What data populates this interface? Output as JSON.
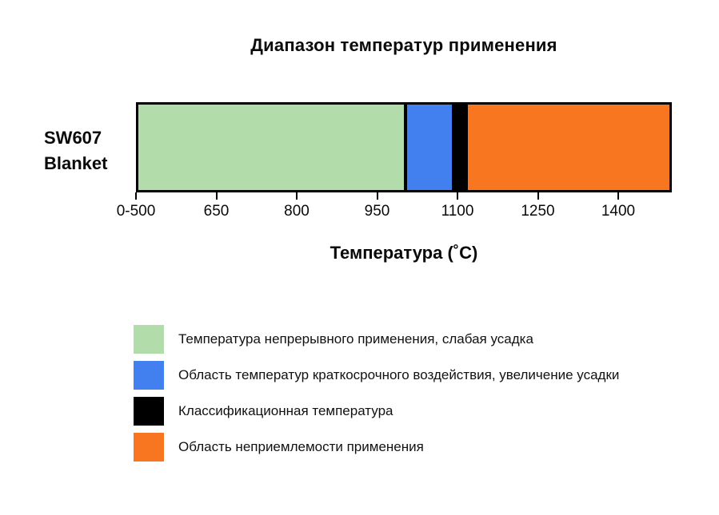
{
  "row_label_lines": [
    "SW607",
    "Blanket"
  ],
  "colors": {
    "continuous_use_green": "#b3dcab",
    "short_term_blue": "#4280f0",
    "classification_black": "#000000",
    "unacceptable_orange": "#f97621",
    "bar_border": "#000000"
  },
  "chart_data": {
    "type": "bar",
    "orientation": "horizontal-stacked",
    "title": "Диапазон температур применения",
    "categories": [
      "SW607 Blanket"
    ],
    "xlabel": "Температура (˚C)",
    "xlim": [
      500,
      1500
    ],
    "grid": false,
    "legend_position": "bottom-left",
    "x_ticks": [
      {
        "label": "0-500",
        "value": 500
      },
      {
        "label": "650",
        "value": 650
      },
      {
        "label": "800",
        "value": 800
      },
      {
        "label": "950",
        "value": 950
      },
      {
        "label": "1100",
        "value": 1100
      },
      {
        "label": "1250",
        "value": 1250
      },
      {
        "label": "1400",
        "value": 1400
      }
    ],
    "segments": [
      {
        "name": "continuous-use",
        "label": "Температура непрерывного применения, слабая усадка",
        "from": 500,
        "to": 1000,
        "color": "#b3dcab"
      },
      {
        "name": "short-term-exposure",
        "label": "Область температур краткосрочного воздействия, увеличение усадки",
        "from": 1000,
        "to": 1090,
        "color": "#4280f0"
      },
      {
        "name": "classification-temperature",
        "label": "Классификационная температура",
        "from": 1090,
        "to": 1115,
        "classification_value": 1100,
        "color": "#000000"
      },
      {
        "name": "unacceptable-use",
        "label": "Область неприемлемости применения",
        "from": 1115,
        "to": 1500,
        "color": "#f97621"
      }
    ]
  }
}
